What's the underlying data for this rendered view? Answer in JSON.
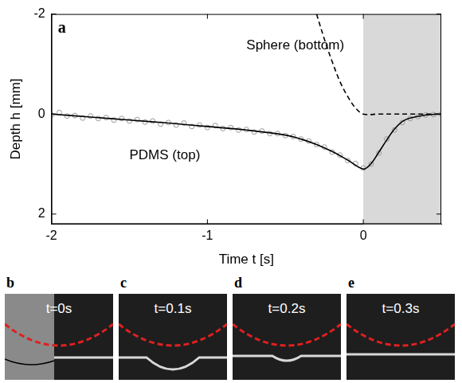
{
  "chart_data": {
    "type": "line",
    "panel_label": "a",
    "xlabel": "Time t [s]",
    "ylabel": "Depth h [mm]",
    "xlim": [
      -2,
      0.5
    ],
    "xticks": [
      -2,
      -1,
      0
    ],
    "ylim": [
      2.2,
      -2
    ],
    "yticks": [
      -2,
      0,
      2
    ],
    "grid": false,
    "shaded_x": [
      0,
      0.5
    ],
    "annotations": [
      {
        "text": "Sphere (bottom)"
      },
      {
        "text": "PDMS (top)"
      }
    ],
    "series": [
      {
        "type": "scatter",
        "marker": "circle",
        "color": "#999999",
        "x": [
          -2.0,
          -1.95,
          -1.9,
          -1.85,
          -1.8,
          -1.75,
          -1.7,
          -1.65,
          -1.6,
          -1.55,
          -1.5,
          -1.45,
          -1.4,
          -1.35,
          -1.3,
          -1.25,
          -1.2,
          -1.15,
          -1.1,
          -1.05,
          -1.0,
          -0.95,
          -0.9,
          -0.85,
          -0.8,
          -0.75,
          -0.7,
          -0.65,
          -0.6,
          -0.55,
          -0.5,
          -0.45,
          -0.4,
          -0.35,
          -0.3,
          -0.25,
          -0.2,
          -0.15,
          -0.1,
          -0.05,
          0.0,
          0.05,
          0.1,
          0.15,
          0.2,
          0.25,
          0.3,
          0.35,
          0.4,
          0.45,
          0.5
        ],
        "values": [
          0.02,
          -0.03,
          0.04,
          0.03,
          0.08,
          0.04,
          0.09,
          0.07,
          0.12,
          0.09,
          0.14,
          0.11,
          0.16,
          0.14,
          0.2,
          0.17,
          0.22,
          0.18,
          0.25,
          0.22,
          0.27,
          0.23,
          0.29,
          0.27,
          0.32,
          0.31,
          0.36,
          0.34,
          0.39,
          0.39,
          0.43,
          0.45,
          0.5,
          0.54,
          0.61,
          0.66,
          0.76,
          0.82,
          0.93,
          0.99,
          1.08,
          1.0,
          0.78,
          0.5,
          0.32,
          0.17,
          0.09,
          0.05,
          0.02,
          0.01,
          0.0
        ]
      },
      {
        "type": "line",
        "line_style": "solid",
        "color": "#000000",
        "x": [
          -2.0,
          -1.75,
          -1.5,
          -1.25,
          -1.0,
          -0.75,
          -0.5,
          -0.4,
          -0.3,
          -0.2,
          -0.1,
          0.0,
          0.05,
          0.1,
          0.15,
          0.2,
          0.25,
          0.3,
          0.4,
          0.5
        ],
        "values": [
          0.0,
          0.06,
          0.12,
          0.18,
          0.25,
          0.32,
          0.42,
          0.5,
          0.61,
          0.75,
          0.92,
          1.1,
          0.99,
          0.76,
          0.52,
          0.3,
          0.15,
          0.08,
          0.02,
          0.0
        ]
      },
      {
        "type": "line",
        "line_style": "dashed",
        "color": "#000000",
        "x": [
          -0.3,
          -0.25,
          -0.2,
          -0.15,
          -0.1,
          -0.05,
          0.0,
          0.1,
          0.2,
          0.3,
          0.4,
          0.5
        ],
        "values": [
          -2.0,
          -1.5,
          -1.05,
          -0.65,
          -0.35,
          -0.12,
          0.0,
          0.0,
          0.0,
          0.0,
          0.0,
          0.0
        ]
      }
    ]
  },
  "image_panels": [
    {
      "label": "b",
      "text": "t=0s"
    },
    {
      "label": "c",
      "text": "t=0.1s"
    },
    {
      "label": "d",
      "text": "t=0.2s"
    },
    {
      "label": "e",
      "text": "t=0.3s"
    }
  ]
}
